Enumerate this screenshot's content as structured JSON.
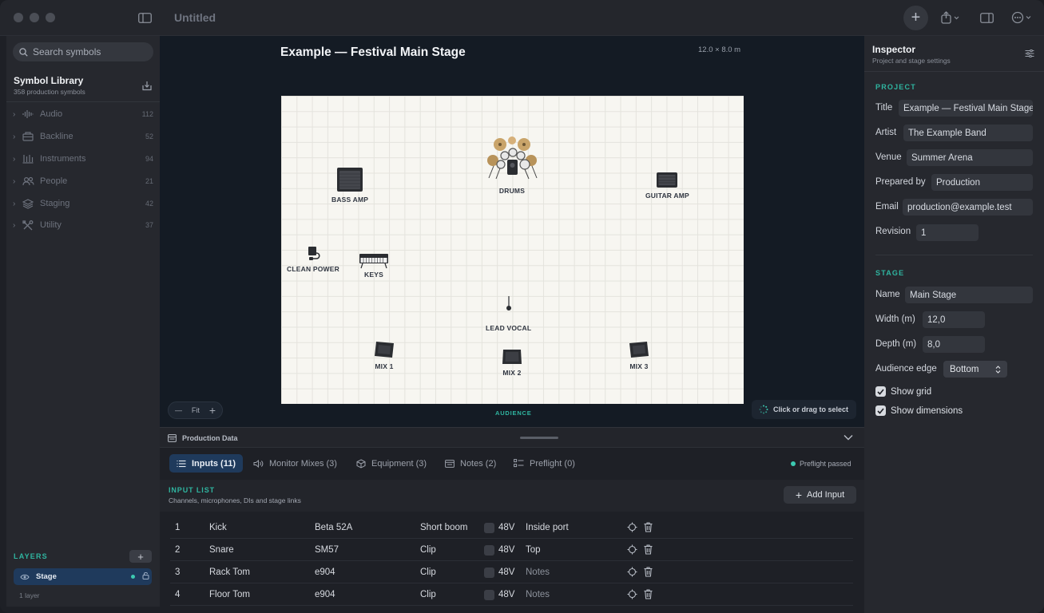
{
  "app": {
    "title": "Untitled"
  },
  "sidebar": {
    "search_placeholder": "Search symbols",
    "library_title": "Symbol Library",
    "library_subtitle": "358 production symbols",
    "categories": [
      {
        "label": "Audio",
        "count": "112",
        "icon": "waveform-icon"
      },
      {
        "label": "Backline",
        "count": "52",
        "icon": "amp-icon"
      },
      {
        "label": "Instruments",
        "count": "94",
        "icon": "instruments-icon"
      },
      {
        "label": "People",
        "count": "21",
        "icon": "people-icon"
      },
      {
        "label": "Staging",
        "count": "42",
        "icon": "layers-stack-icon"
      },
      {
        "label": "Utility",
        "count": "37",
        "icon": "tools-icon"
      }
    ],
    "layers_title": "LAYERS",
    "layer_name": "Stage",
    "layers_count": "1 layer"
  },
  "canvas": {
    "stage_title": "Example — Festival Main Stage",
    "stage_dims": "12.0 × 8.0 m",
    "audience_label": "AUDIENCE",
    "zoom_fit": "Fit",
    "hint": "Click or drag to select",
    "symbols": [
      {
        "label": "BASS AMP"
      },
      {
        "label": "DRUMS"
      },
      {
        "label": "GUITAR AMP"
      },
      {
        "label": "CLEAN POWER"
      },
      {
        "label": "KEYS"
      },
      {
        "label": "LEAD VOCAL"
      },
      {
        "label": "MIX 1"
      },
      {
        "label": "MIX 2"
      },
      {
        "label": "MIX 3"
      }
    ]
  },
  "production": {
    "panel_title": "Production Data",
    "tabs": [
      {
        "label": "Inputs (11)"
      },
      {
        "label": "Monitor Mixes (3)"
      },
      {
        "label": "Equipment (3)"
      },
      {
        "label": "Notes (2)"
      },
      {
        "label": "Preflight (0)"
      }
    ],
    "preflight_status": "Preflight passed",
    "input_list_title": "INPUT LIST",
    "input_list_subtitle": "Channels, microphones, DIs and stage links",
    "add_input_label": "Add Input",
    "rows": [
      {
        "ch": "1",
        "name": "Kick",
        "mic": "Beta 52A",
        "stand": "Short boom",
        "phantom": "48V",
        "notes": "Inside port",
        "notes_placeholder": false
      },
      {
        "ch": "2",
        "name": "Snare",
        "mic": "SM57",
        "stand": "Clip",
        "phantom": "48V",
        "notes": "Top",
        "notes_placeholder": false
      },
      {
        "ch": "3",
        "name": "Rack Tom",
        "mic": "e904",
        "stand": "Clip",
        "phantom": "48V",
        "notes": "Notes",
        "notes_placeholder": true
      },
      {
        "ch": "4",
        "name": "Floor Tom",
        "mic": "e904",
        "stand": "Clip",
        "phantom": "48V",
        "notes": "Notes",
        "notes_placeholder": true
      }
    ]
  },
  "inspector": {
    "title": "Inspector",
    "subtitle": "Project and stage settings",
    "project_section": "PROJECT",
    "project_fields": [
      {
        "label": "Title",
        "value": "Example — Festival Main Stage"
      },
      {
        "label": "Artist",
        "value": "The Example Band"
      },
      {
        "label": "Venue",
        "value": "Summer Arena"
      },
      {
        "label": "Prepared by",
        "value": "Production"
      },
      {
        "label": "Email",
        "value": "production@example.test"
      },
      {
        "label": "Revision",
        "value": "1"
      }
    ],
    "stage_section": "STAGE",
    "stage_fields": [
      {
        "label": "Name",
        "value": "Main Stage"
      },
      {
        "label": "Width (m)",
        "value": "12,0"
      },
      {
        "label": "Depth (m)",
        "value": "8,0"
      }
    ],
    "audience_edge_label": "Audience edge",
    "audience_edge_value": "Bottom",
    "show_grid_label": "Show grid",
    "show_grid": true,
    "show_dimensions_label": "Show dimensions",
    "show_dimensions": true
  },
  "colors": {
    "accent": "#2fb5a0",
    "selection": "#1f3a5c",
    "stage_bg": "#f7f6f1"
  }
}
